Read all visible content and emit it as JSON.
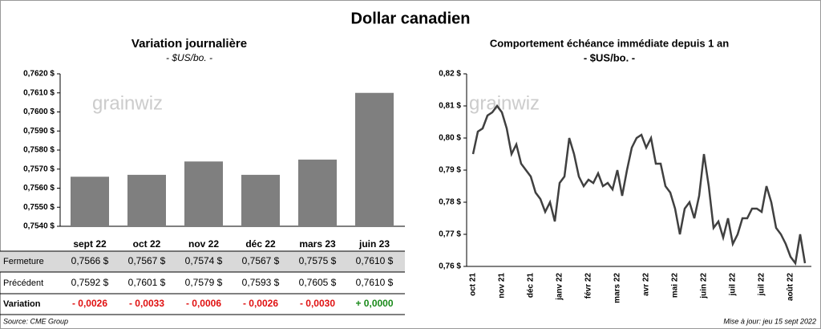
{
  "title": "Dollar canadien",
  "watermark": "grainwiz",
  "source": "Source: CME Group",
  "updated": "Mise à jour: jeu 15 sept 2022",
  "chart_data": [
    {
      "type": "bar",
      "title": "Variation  journalière",
      "subtitle": "- $US/bo. -",
      "categories": [
        "sept 22",
        "oct 22",
        "nov 22",
        "déc 22",
        "mars 23",
        "juin 23"
      ],
      "values": [
        0.7566,
        0.7567,
        0.7574,
        0.7567,
        0.7575,
        0.761
      ],
      "value_labels": [
        "0,7566 $",
        "0,7567 $",
        "0,7574 $",
        "0,7567 $",
        "0,7575 $",
        "0,7610 $"
      ],
      "color": "#7f7f7f",
      "ylim": [
        0.754,
        0.762
      ],
      "yticks": [
        {
          "value": 0.754,
          "label": "0,7540 $"
        },
        {
          "value": 0.755,
          "label": "0,7550 $"
        },
        {
          "value": 0.756,
          "label": "0,7560 $"
        },
        {
          "value": 0.757,
          "label": "0,7570 $"
        },
        {
          "value": 0.758,
          "label": "0,7580 $"
        },
        {
          "value": 0.759,
          "label": "0,7590 $"
        },
        {
          "value": 0.76,
          "label": "0,7600 $"
        },
        {
          "value": 0.761,
          "label": "0,7610 $"
        },
        {
          "value": 0.762,
          "label": "0,7620 $"
        }
      ]
    },
    {
      "type": "line",
      "title": "Comportement échéance immédiate depuis 1 an",
      "subtitle": "- $US/bo. -",
      "categories": [
        "oct 21",
        null,
        null,
        null,
        null,
        null,
        "nov 21",
        null,
        null,
        null,
        null,
        null,
        "déc 21",
        null,
        null,
        null,
        null,
        null,
        "janv 22",
        null,
        null,
        null,
        null,
        null,
        "févr 22",
        null,
        null,
        null,
        null,
        null,
        "mars 22",
        null,
        null,
        null,
        null,
        null,
        "avr 22",
        null,
        null,
        null,
        null,
        null,
        "mai 22",
        null,
        null,
        null,
        null,
        null,
        "juin 22",
        null,
        null,
        null,
        null,
        null,
        "juil 22",
        null,
        null,
        null,
        null,
        null,
        "juil 22",
        null,
        null,
        null,
        null,
        null,
        "août 22",
        null,
        null,
        null
      ],
      "values": [
        0.795,
        0.802,
        0.803,
        0.807,
        0.808,
        0.81,
        0.808,
        0.803,
        0.795,
        0.798,
        0.792,
        0.79,
        0.788,
        0.783,
        0.781,
        0.777,
        0.78,
        0.774,
        0.786,
        0.788,
        0.8,
        0.795,
        0.788,
        0.785,
        0.787,
        0.786,
        0.789,
        0.785,
        0.786,
        0.784,
        0.79,
        0.782,
        0.79,
        0.797,
        0.8,
        0.801,
        0.797,
        0.8,
        0.792,
        0.792,
        0.785,
        0.783,
        0.778,
        0.77,
        0.778,
        0.78,
        0.775,
        0.782,
        0.795,
        0.785,
        0.772,
        0.774,
        0.769,
        0.775,
        0.767,
        0.77,
        0.775,
        0.775,
        0.778,
        0.778,
        0.777,
        0.785,
        0.78,
        0.772,
        0.77,
        0.767,
        0.763,
        0.761,
        0.77,
        0.761
      ],
      "color": "#404040",
      "ylim": [
        0.76,
        0.82
      ],
      "yticks": [
        {
          "value": 0.76,
          "label": "0,76 $"
        },
        {
          "value": 0.77,
          "label": "0,77 $"
        },
        {
          "value": 0.78,
          "label": "0,78 $"
        },
        {
          "value": 0.79,
          "label": "0,79 $"
        },
        {
          "value": 0.8,
          "label": "0,80 $"
        },
        {
          "value": 0.81,
          "label": "0,81 $"
        },
        {
          "value": 0.82,
          "label": "0,82 $"
        }
      ]
    }
  ],
  "table": {
    "rows": [
      {
        "label": "Fermeture"
      },
      {
        "label": "Précédent",
        "values": [
          "0,7592 $",
          "0,7601 $",
          "0,7579 $",
          "0,7593 $",
          "0,7605 $",
          "0,7610 $"
        ]
      },
      {
        "label": "Variation",
        "values": [
          "- 0,0026",
          "- 0,0033",
          "- 0,0006",
          "- 0,0026",
          "- 0,0030",
          "+ 0,0000"
        ]
      }
    ]
  }
}
